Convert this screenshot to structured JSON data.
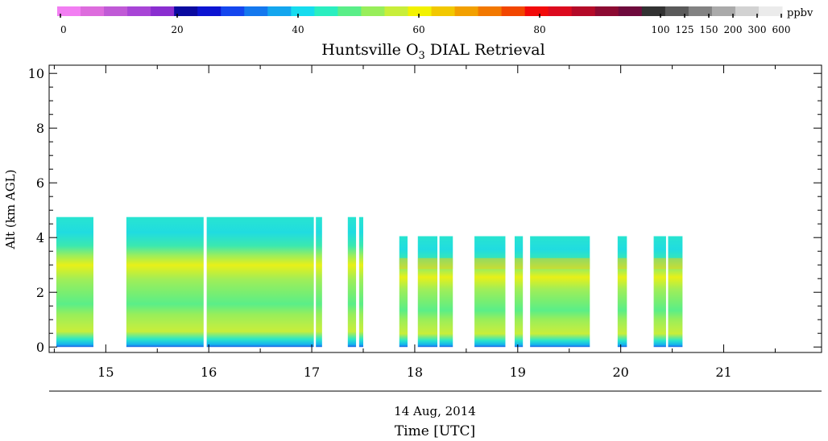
{
  "colorbar": {
    "unit": "ppbv",
    "tick_labels": [
      "0",
      "20",
      "40",
      "60",
      "80",
      "100",
      "125",
      "150",
      "200",
      "300",
      "600"
    ],
    "colors": [
      "#f27ef2",
      "#dd6cdd",
      "#c05ad6",
      "#a845d6",
      "#8a2ed0",
      "#0a0aa0",
      "#0c14d2",
      "#1446ee",
      "#1478ee",
      "#14a6ee",
      "#16dcee",
      "#2aeec0",
      "#5aee88",
      "#98ee5a",
      "#c8ee3a",
      "#f2f200",
      "#f2c800",
      "#f2a000",
      "#f27800",
      "#f24600",
      "#f20a0a",
      "#dc0a1e",
      "#b40a28",
      "#8c0a32",
      "#6e0a3c",
      "#323232",
      "#5a5a5a",
      "#828282",
      "#aaaaaa",
      "#d2d2d2",
      "#ebebeb"
    ]
  },
  "chart_data": {
    "type": "heatmap",
    "title_main": "Huntsville O",
    "title_sub": "3",
    "title_rest": " DIAL Retrieval",
    "ylabel": "Alt (km AGL)",
    "xlabel_date": "14 Aug, 2014",
    "xlabel": "Time [UTC]",
    "xlim": [
      14.45,
      21.95
    ],
    "ylim": [
      -0.2,
      10.3
    ],
    "x_ticks": [
      "15",
      "16",
      "17",
      "18",
      "19",
      "20",
      "21"
    ],
    "y_ticks": [
      "0",
      "2",
      "4",
      "6",
      "8",
      "10"
    ],
    "data_segments": [
      {
        "start": 14.52,
        "end": 14.88,
        "top_km": 4.75
      },
      {
        "start": 15.2,
        "end": 15.95,
        "top_km": 4.75
      },
      {
        "start": 15.98,
        "end": 17.02,
        "top_km": 4.75
      },
      {
        "start": 17.04,
        "end": 17.1,
        "top_km": 4.75
      },
      {
        "start": 17.35,
        "end": 17.43,
        "top_km": 4.75
      },
      {
        "start": 17.46,
        "end": 17.5,
        "top_km": 4.75
      },
      {
        "start": 17.85,
        "end": 17.93,
        "top_km": 4.05
      },
      {
        "start": 18.03,
        "end": 18.22,
        "top_km": 4.05
      },
      {
        "start": 18.24,
        "end": 18.37,
        "top_km": 4.05
      },
      {
        "start": 18.58,
        "end": 18.88,
        "top_km": 4.05
      },
      {
        "start": 18.97,
        "end": 19.05,
        "top_km": 4.05
      },
      {
        "start": 19.12,
        "end": 19.7,
        "top_km": 4.05
      },
      {
        "start": 19.97,
        "end": 20.06,
        "top_km": 4.05
      },
      {
        "start": 20.32,
        "end": 20.44,
        "top_km": 4.05
      },
      {
        "start": 20.46,
        "end": 20.6,
        "top_km": 4.05
      }
    ],
    "ozone_profile_ppbv": [
      {
        "alt_km": 0.0,
        "ppbv": 30
      },
      {
        "alt_km": 0.3,
        "ppbv": 42
      },
      {
        "alt_km": 0.8,
        "ppbv": 60
      },
      {
        "alt_km": 1.2,
        "ppbv": 56
      },
      {
        "alt_km": 1.6,
        "ppbv": 54
      },
      {
        "alt_km": 2.0,
        "ppbv": 50
      },
      {
        "alt_km": 2.5,
        "ppbv": 53
      },
      {
        "alt_km": 3.0,
        "ppbv": 61
      },
      {
        "alt_km": 3.4,
        "ppbv": 54
      },
      {
        "alt_km": 3.8,
        "ppbv": 44
      },
      {
        "alt_km": 4.3,
        "ppbv": 42
      },
      {
        "alt_km": 4.75,
        "ppbv": 44
      }
    ]
  }
}
